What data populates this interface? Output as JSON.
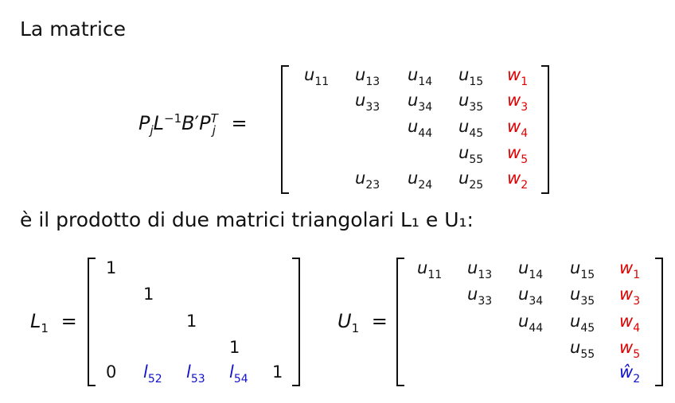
{
  "intro_text": "La matrice",
  "product_text": "è il prodotto di due matrici triangolari L₁ e U₁:",
  "lhs_main": {
    "P": "P",
    "j1": "j",
    "L": "L",
    "minus1": "−1",
    "B": "B",
    "prime": "′",
    "P2": "P",
    "T": "T",
    "j2": "j",
    "eq": "="
  },
  "matrix_A": {
    "rows": [
      [
        [
          "u",
          "11",
          ""
        ],
        [
          "u",
          "13",
          ""
        ],
        [
          "u",
          "14",
          ""
        ],
        [
          "u",
          "15",
          ""
        ],
        [
          "w",
          "1",
          "red"
        ]
      ],
      [
        null,
        [
          "u",
          "33",
          ""
        ],
        [
          "u",
          "34",
          ""
        ],
        [
          "u",
          "35",
          ""
        ],
        [
          "w",
          "3",
          "red"
        ]
      ],
      [
        null,
        null,
        [
          "u",
          "44",
          ""
        ],
        [
          "u",
          "45",
          ""
        ],
        [
          "w",
          "4",
          "red"
        ]
      ],
      [
        null,
        null,
        null,
        [
          "u",
          "55",
          ""
        ],
        [
          "w",
          "5",
          "red"
        ]
      ],
      [
        null,
        [
          "u",
          "23",
          ""
        ],
        [
          "u",
          "24",
          ""
        ],
        [
          "u",
          "25",
          ""
        ],
        [
          "w",
          "2",
          "red"
        ]
      ]
    ]
  },
  "L1_label": {
    "sym": "L",
    "sub": "1",
    "eq": "="
  },
  "matrix_L1": {
    "rows": [
      [
        [
          "1",
          "",
          ""
        ],
        null,
        null,
        null,
        null
      ],
      [
        null,
        [
          "1",
          "",
          ""
        ],
        null,
        null,
        null
      ],
      [
        null,
        null,
        [
          "1",
          "",
          ""
        ],
        null,
        null
      ],
      [
        null,
        null,
        null,
        [
          "1",
          "",
          ""
        ],
        null
      ],
      [
        [
          "0",
          "",
          ""
        ],
        [
          "l",
          "52",
          "blue"
        ],
        [
          "l",
          "53",
          "blue"
        ],
        [
          "l",
          "54",
          "blue"
        ],
        [
          "1",
          "",
          ""
        ]
      ]
    ]
  },
  "U1_label": {
    "sym": "U",
    "sub": "1",
    "eq": "="
  },
  "matrix_U1": {
    "rows": [
      [
        [
          "u",
          "11",
          ""
        ],
        [
          "u",
          "13",
          ""
        ],
        [
          "u",
          "14",
          ""
        ],
        [
          "u",
          "15",
          ""
        ],
        [
          "w",
          "1",
          "red"
        ]
      ],
      [
        null,
        [
          "u",
          "33",
          ""
        ],
        [
          "u",
          "34",
          ""
        ],
        [
          "u",
          "35",
          ""
        ],
        [
          "w",
          "3",
          "red"
        ]
      ],
      [
        null,
        null,
        [
          "u",
          "44",
          ""
        ],
        [
          "u",
          "45",
          ""
        ],
        [
          "w",
          "4",
          "red"
        ]
      ],
      [
        null,
        null,
        null,
        [
          "u",
          "55",
          ""
        ],
        [
          "w",
          "5",
          "red"
        ]
      ],
      [
        null,
        null,
        null,
        null,
        [
          "ŵ",
          "2",
          "blue"
        ]
      ]
    ]
  }
}
